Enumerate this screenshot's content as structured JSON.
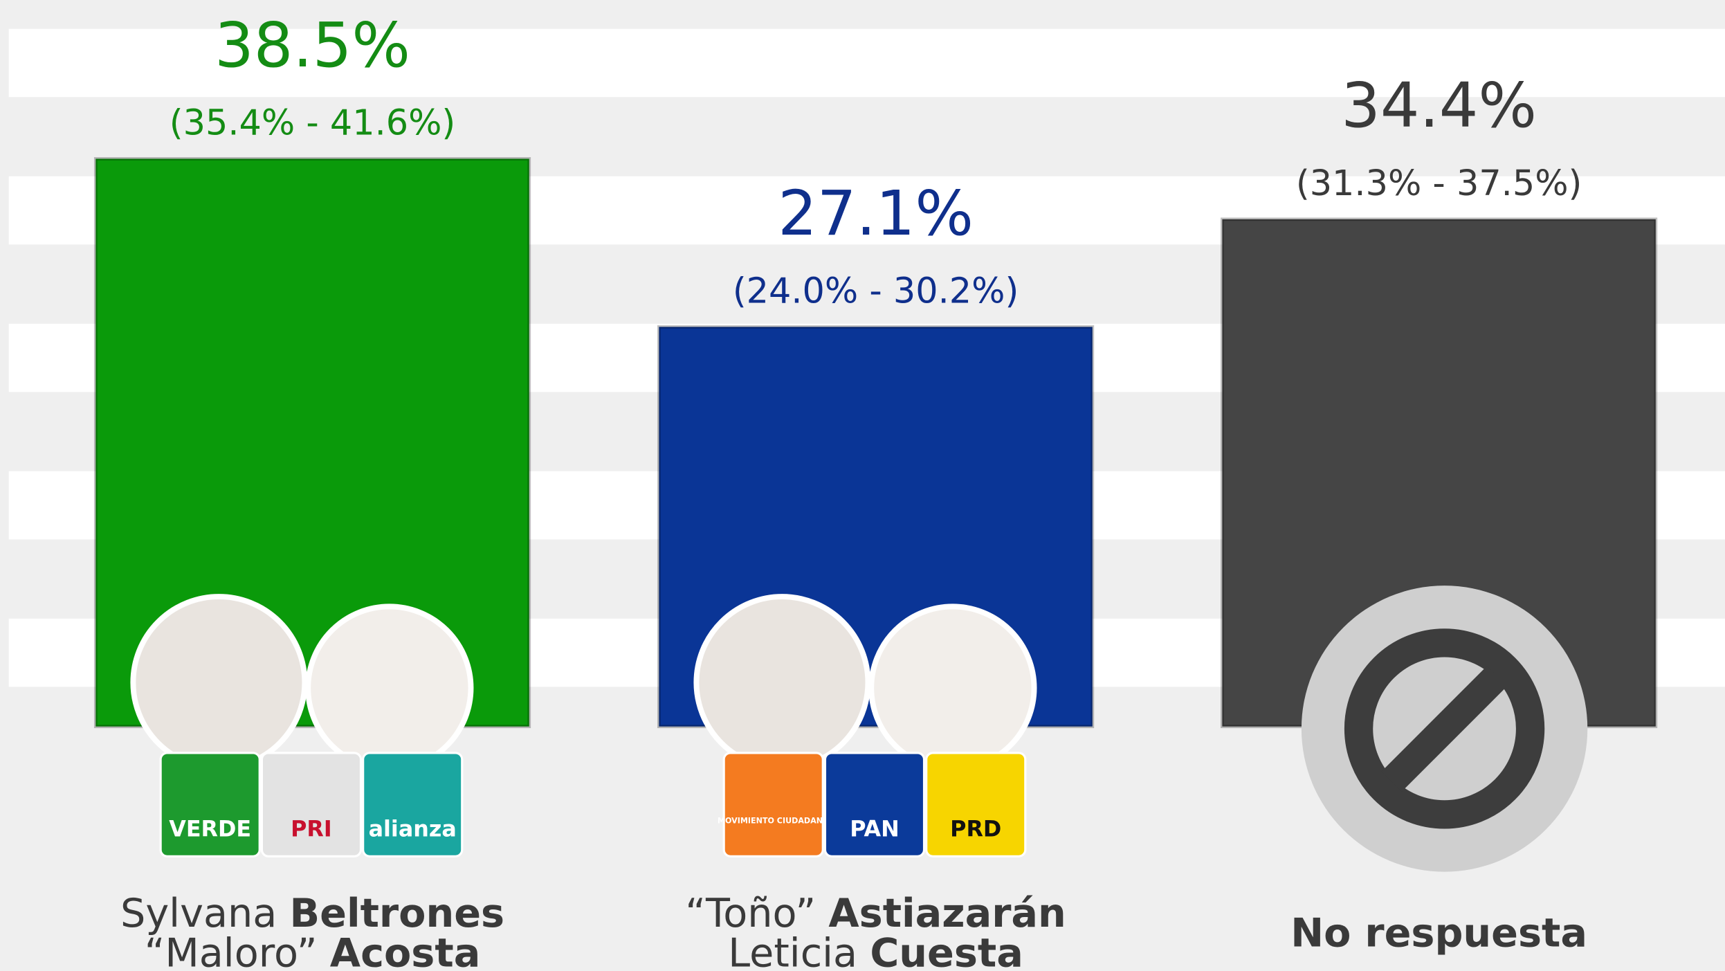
{
  "chart_data": {
    "type": "bar",
    "categories": [
      [
        {
          "light": "Sylvana",
          "bold": "Beltrones"
        },
        {
          "light": "“Maloro”",
          "bold": "Acosta"
        }
      ],
      [
        {
          "light": "“Toño”",
          "bold": "Astiazarán"
        },
        {
          "light": "Leticia",
          "bold": "Cuesta"
        }
      ],
      [
        {
          "bold": "No respuesta"
        }
      ]
    ],
    "values": [
      38.5,
      27.1,
      34.4
    ],
    "value_labels": [
      "38.5%",
      "27.1%",
      "34.4%"
    ],
    "interval_labels": [
      "(35.4% - 41.6%)",
      "(24.0% - 30.2%)",
      "(31.3% - 37.5%)"
    ],
    "colors": [
      "#0a9a0a",
      "#0a3596",
      "#454545"
    ],
    "label_colors": [
      "#148c14",
      "#0f2f8c",
      "#3a3a3a"
    ],
    "logos": [
      [
        "VERDE",
        "PRI",
        "alianza"
      ],
      [
        "MOVIMIENTO CIUDADANO",
        "PAN",
        "PRD"
      ],
      []
    ]
  }
}
